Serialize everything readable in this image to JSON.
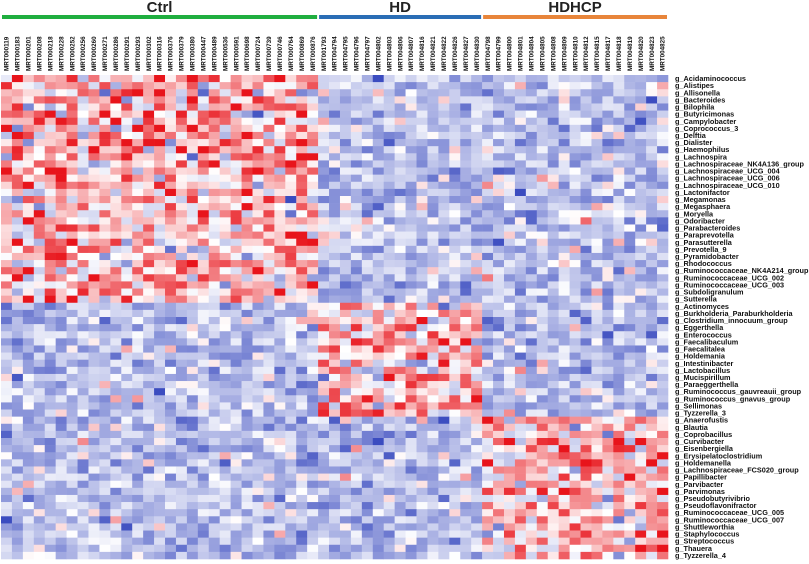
{
  "chart_data": {
    "type": "heatmap",
    "title": "",
    "color_scale": {
      "low": "#3b4cc0",
      "mid": "#ffffff",
      "high": "#e8141b",
      "range": [
        -2,
        2
      ]
    },
    "groups": [
      {
        "name": "Ctrl",
        "color": "#1fae3f",
        "samples": [
          "MRT000119",
          "MRT000183",
          "MRT000201",
          "MRT000208",
          "MRT000218",
          "MRT000228",
          "MRT000252",
          "MRT000256",
          "MRT000260",
          "MRT000271",
          "MRT000286",
          "MRT000291",
          "MRT000293",
          "MRT000302",
          "MRT000316",
          "MRT000376",
          "MRT000379",
          "MRT000380",
          "MRT000447",
          "MRT000489",
          "MRT000536",
          "MRT000591",
          "MRT000698",
          "MRT000724",
          "MRT000739",
          "MRT000746",
          "MRT000764",
          "MRT000869",
          "MRT000876"
        ]
      },
      {
        "name": "HD",
        "color": "#2a6db5",
        "samples": [
          "MRT001793",
          "MRT004794",
          "MRT004795",
          "MRT004796",
          "MRT004797",
          "MRT004802",
          "MRT004803",
          "MRT004806",
          "MRT004807",
          "MRT004816",
          "MRT004821",
          "MRT004822",
          "MRT004826",
          "MRT004827",
          "MRT004830"
        ]
      },
      {
        "name": "HDHCP",
        "color": "#e8853a",
        "samples": [
          "MRT004798",
          "MRT004799",
          "MRT004800",
          "MRT004801",
          "MRT004804",
          "MRT004805",
          "MRT004808",
          "MRT004809",
          "MRT004810",
          "MRT004812",
          "MRT004815",
          "MRT004817",
          "MRT004818",
          "MRT004819",
          "MRT004820",
          "MRT004823",
          "MRT004825"
        ]
      }
    ],
    "genera": [
      "g_Acidaminococcus",
      "g_Alistipes",
      "g_Allisonella",
      "g_Bacteroides",
      "g_Bilophila",
      "g_Butyricimonas",
      "g_Campylobacter",
      "g_Coprococcus_3",
      "g_Delftia",
      "g_Dialister",
      "g_Haemophilus",
      "g_Lachnospira",
      "g_Lachnospiraceae_NK4A136_group",
      "g_Lachnospiraceae_UCG_004",
      "g_Lachnospiraceae_UCG_006",
      "g_Lachnospiraceae_UCG_010",
      "g_Lactonifactor",
      "g_Megamonas",
      "g_Megasphaera",
      "g_Moryella",
      "g_Odoribacter",
      "g_Parabacteroides",
      "g_Paraprevotella",
      "g_Parasutterella",
      "g_Prevotella_9",
      "g_Pyramidobacter",
      "g_Rhodococcus",
      "g_Ruminococcaceae_NK4A214_group",
      "g_Ruminococcaceae_UCG_002",
      "g_Ruminococcaceae_UCG_003",
      "g_Subdoligranulum",
      "g_Sutterella",
      "g_Actinomyces",
      "g_Burkholderia_Paraburkholderia",
      "g_Clostridium_innocuum_group",
      "g_Eggerthella",
      "g_Enterococcus",
      "g_Faecalibaculum",
      "g_Faecalitalea",
      "g_Holdemania",
      "g_Intestinibacter",
      "g_Lactobacillus",
      "g_Mucispirillum",
      "g_Paraeggerthella",
      "g_Ruminococcus_gauvreauii_group",
      "g_Ruminococcus_gnavus_group",
      "g_Sellimonas",
      "g_Tyzzerella_3",
      "g_Anaerofustis",
      "g_Blautia",
      "g_Coprobacillus",
      "g_Curvibacter",
      "g_Eisenbergiella",
      "g_Erysipelatoclostridium",
      "g_Holdemanella",
      "g_Lachnospiraceae_FCS020_group",
      "g_Papillibacter",
      "g_Parvibacter",
      "g_Parvimonas",
      "g_Pseudobutyrivibrio",
      "g_Pseudoflavonifractor",
      "g_Ruminococcaceae_UCG_005",
      "g_Ruminococcaceae_UCG_007",
      "g_Shuttleworthia",
      "g_Staphylococcus",
      "g_Streptococcus",
      "g_Thauera",
      "g_Tyzzerella_4"
    ],
    "row_clusters": [
      {
        "rows": [
          0,
          31
        ],
        "high_group": "Ctrl"
      },
      {
        "rows": [
          32,
          47
        ],
        "high_group": "HD"
      },
      {
        "rows": [
          48,
          67
        ],
        "high_group": "HDHCP"
      }
    ],
    "values_note": "",
    "grid": false,
    "legend": "none"
  }
}
